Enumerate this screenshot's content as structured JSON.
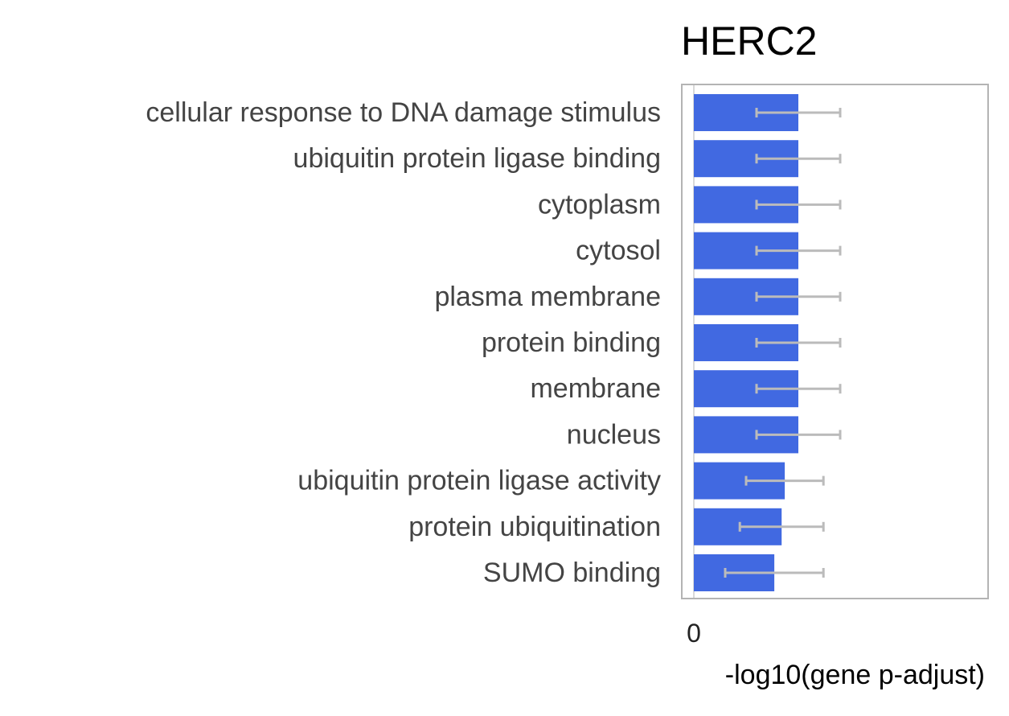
{
  "chart_data": {
    "type": "bar",
    "orientation": "horizontal",
    "title": "HERC2",
    "xlabel": "-log10(gene p-adjust)",
    "ylabel": "",
    "x_ticks": [
      "0"
    ],
    "categories": [
      "cellular response to DNA damage stimulus",
      "ubiquitin protein ligase binding",
      "cytoplasm",
      "cytosol",
      "plasma membrane",
      "protein binding",
      "membrane",
      "nucleus",
      "ubiquitin protein ligase activity",
      "protein ubiquitination",
      "SUMO binding"
    ],
    "values": [
      1.0,
      1.0,
      1.0,
      1.0,
      1.0,
      1.0,
      1.0,
      1.0,
      0.87,
      0.84,
      0.77
    ],
    "error_low": [
      0.6,
      0.6,
      0.6,
      0.6,
      0.6,
      0.6,
      0.6,
      0.6,
      0.5,
      0.44,
      0.3
    ],
    "error_high": [
      1.4,
      1.4,
      1.4,
      1.4,
      1.4,
      1.4,
      1.4,
      1.4,
      1.24,
      1.24,
      1.24
    ],
    "xlim": [
      0,
      2.82
    ],
    "grid": false,
    "legend": "none",
    "colors": {
      "bar": "#4169e1",
      "error_bar": "#bbbbbb",
      "frame": "#b4b4b4",
      "zero_line": "#d9d9d9",
      "category_text": "#444444",
      "title_text": "#000000",
      "axis_text": "#222222"
    }
  }
}
